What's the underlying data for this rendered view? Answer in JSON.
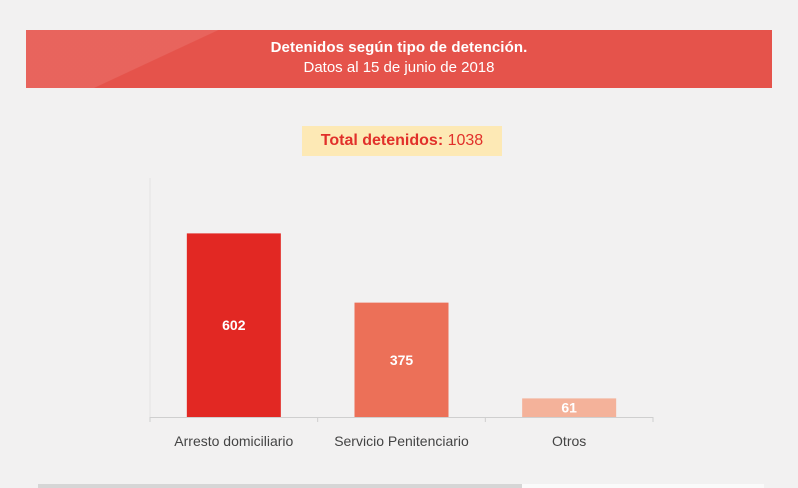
{
  "header": {
    "title": "Detenidos según tipo de detención.",
    "subtitle": "Datos al 15 de junio de 2018"
  },
  "total": {
    "label": "Total detenidos:",
    "value": "1038"
  },
  "colors": {
    "banner": "#e5534b",
    "badge_bg": "#fde9b5",
    "accent_text": "#e1302a"
  },
  "chart_data": {
    "type": "bar",
    "categories": [
      "Arresto domiciliario",
      "Servicio Penitenciario",
      "Otros"
    ],
    "values": [
      602,
      375,
      61
    ],
    "bar_colors": [
      "#e22823",
      "#ec7058",
      "#f4b29a"
    ],
    "ylim": [
      0,
      700
    ],
    "grid": false,
    "legend": "none"
  }
}
